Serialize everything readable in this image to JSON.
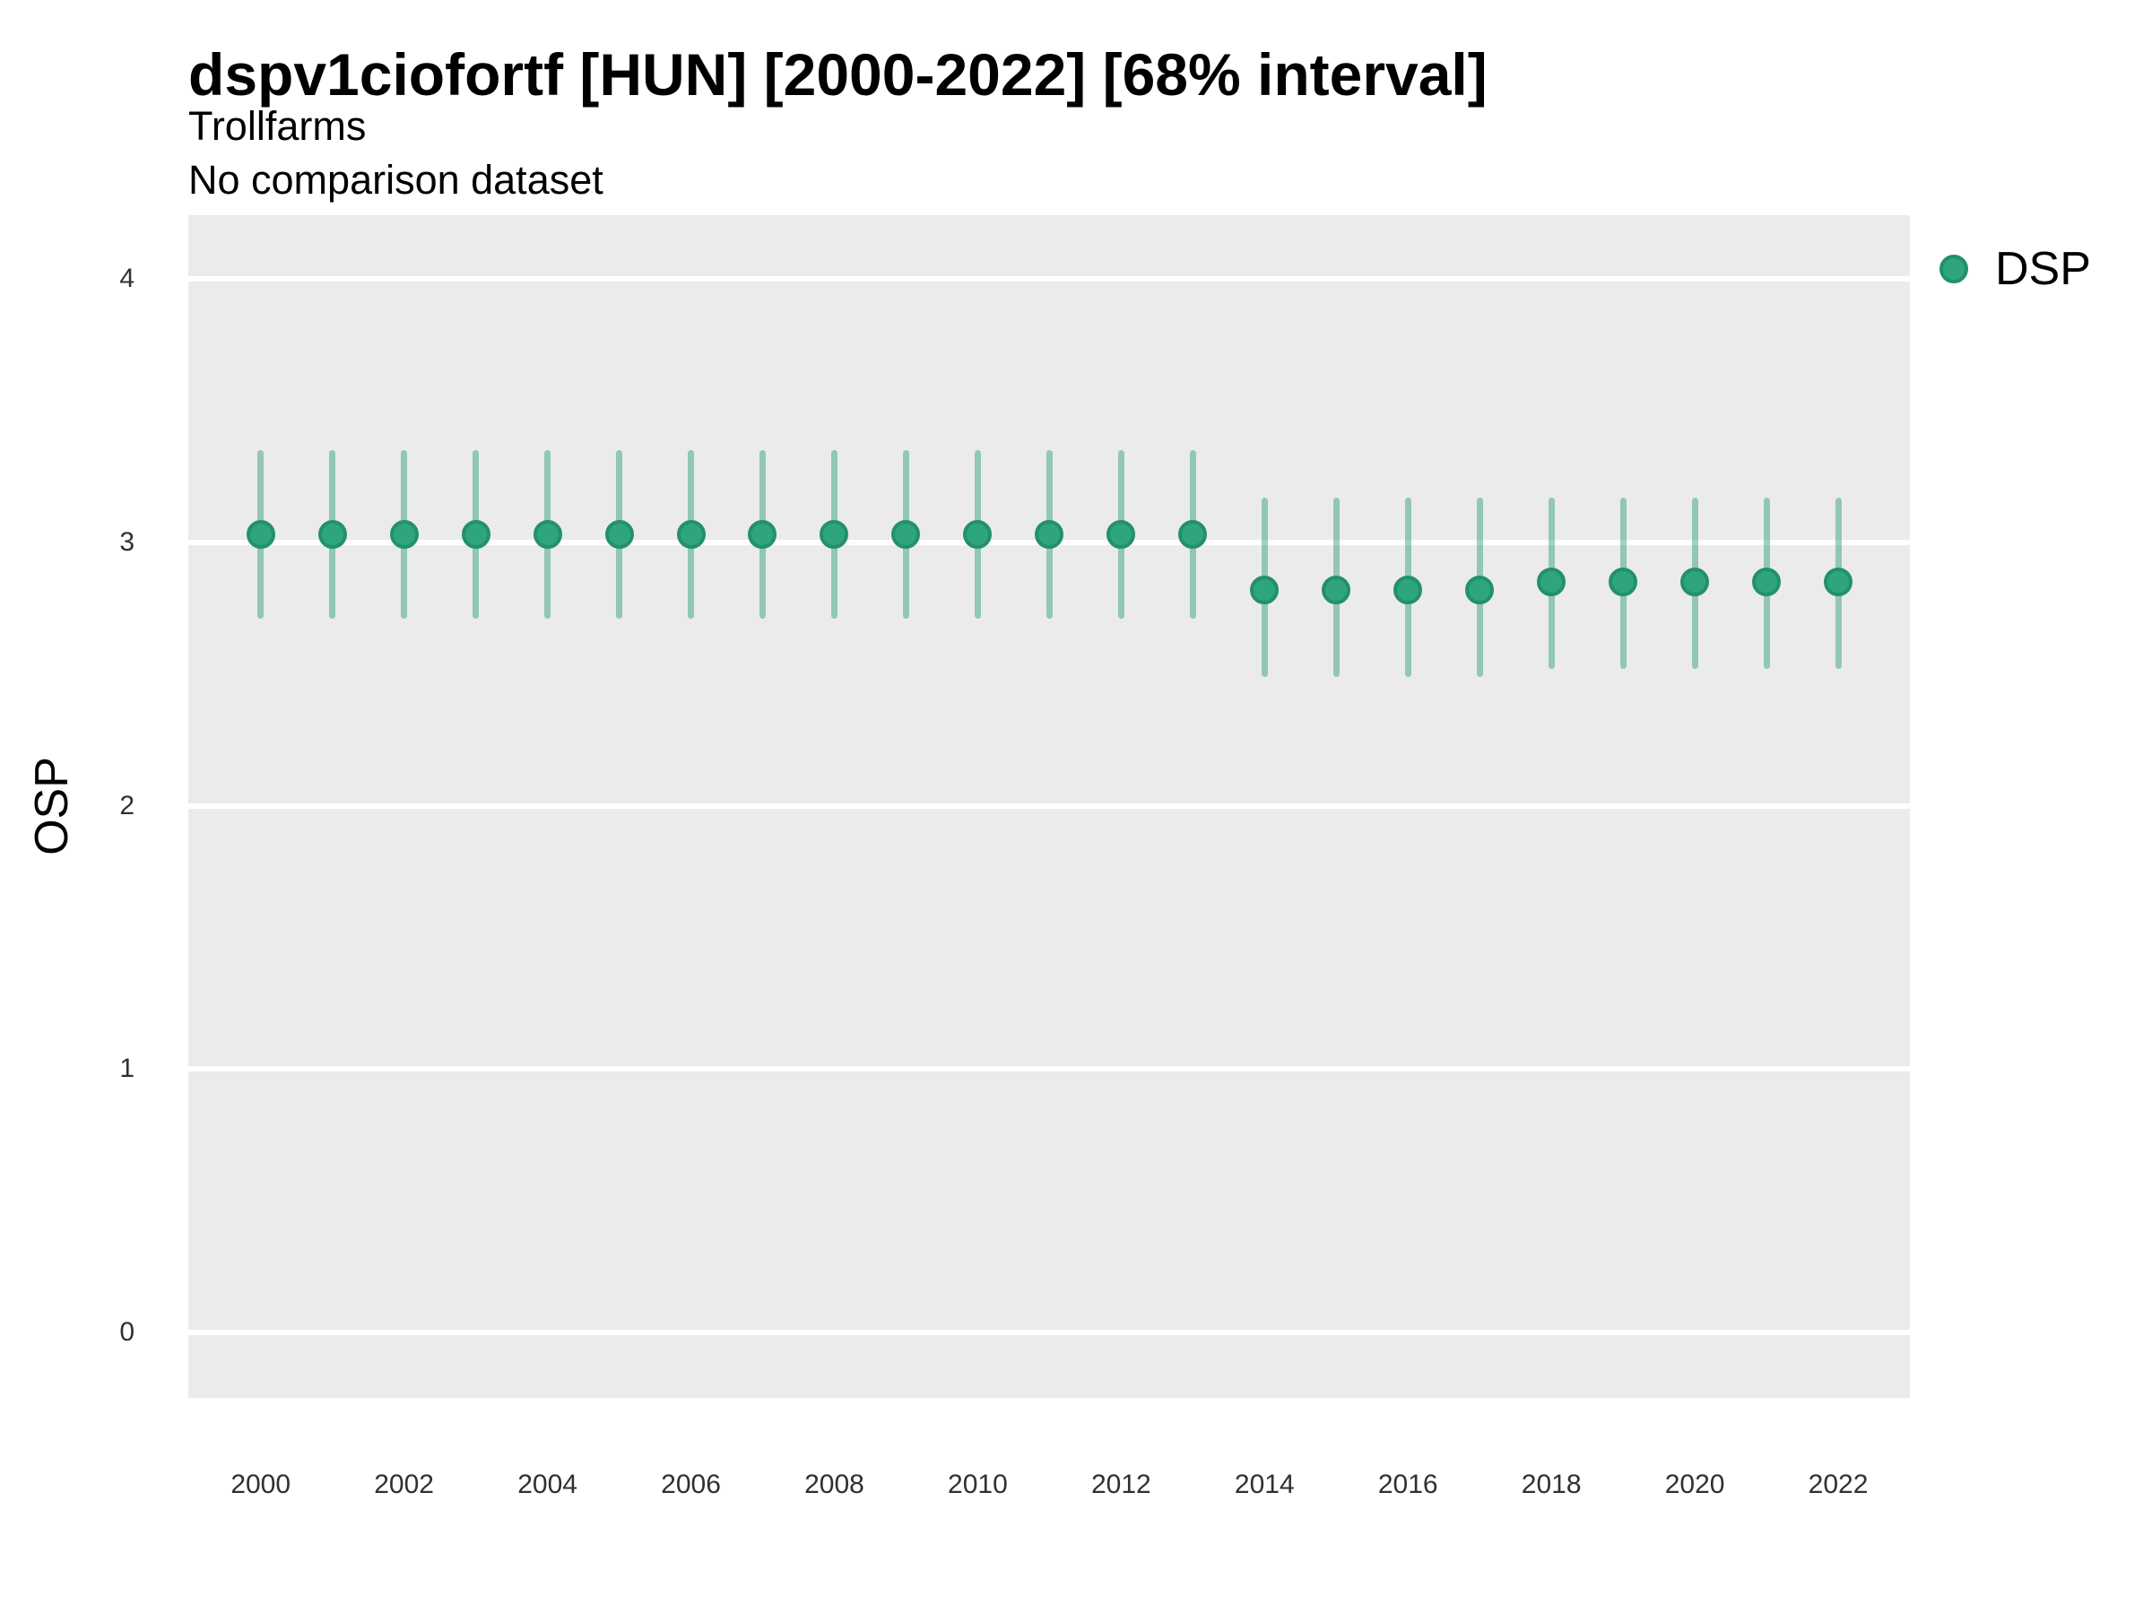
{
  "title": "dspv1ciofortf [HUN] [2000-2022] [68% interval]",
  "subtitle": "Trollfarms",
  "comparison_note": "No comparison dataset",
  "y_axis": {
    "label": "OSP",
    "ticks": [
      0,
      1,
      2,
      3,
      4
    ]
  },
  "x_axis": {
    "ticks": [
      2000,
      2002,
      2004,
      2006,
      2008,
      2010,
      2012,
      2014,
      2016,
      2018,
      2020,
      2022
    ]
  },
  "legend": {
    "items": [
      {
        "label": "DSP",
        "color": "#2ea57d"
      }
    ]
  },
  "colors": {
    "point_fill": "#2ea57d",
    "point_stroke": "#239168",
    "interval_bar": "rgba(44,160,120,0.47)",
    "panel_background": "#ebebeb",
    "gridline": "#ffffff",
    "tick_text": "#303030",
    "title_text": "#000000"
  },
  "chart_data": {
    "type": "scatter",
    "title": "dspv1ciofortf [HUN] [2000-2022] [68% interval]",
    "subtitle": "Trollfarms",
    "note": "No comparison dataset",
    "interval": "68%",
    "xlabel": "",
    "ylabel": "OSP",
    "x": [
      2000,
      2001,
      2002,
      2003,
      2004,
      2005,
      2006,
      2007,
      2008,
      2009,
      2010,
      2011,
      2012,
      2013,
      2014,
      2015,
      2016,
      2017,
      2018,
      2019,
      2020,
      2021,
      2022
    ],
    "series": [
      {
        "name": "DSP",
        "values": [
          3.03,
          3.03,
          3.03,
          3.03,
          3.03,
          3.03,
          3.03,
          3.03,
          3.03,
          3.03,
          3.03,
          3.03,
          3.03,
          3.03,
          2.82,
          2.82,
          2.82,
          2.82,
          2.85,
          2.85,
          2.85,
          2.85,
          2.85
        ],
        "interval_low": [
          2.71,
          2.71,
          2.71,
          2.71,
          2.71,
          2.71,
          2.71,
          2.71,
          2.71,
          2.71,
          2.71,
          2.71,
          2.71,
          2.71,
          2.49,
          2.49,
          2.49,
          2.49,
          2.52,
          2.52,
          2.52,
          2.52,
          2.52
        ],
        "interval_high": [
          3.35,
          3.35,
          3.35,
          3.35,
          3.35,
          3.35,
          3.35,
          3.35,
          3.35,
          3.35,
          3.35,
          3.35,
          3.35,
          3.35,
          3.17,
          3.17,
          3.17,
          3.17,
          3.17,
          3.17,
          3.17,
          3.17,
          3.17
        ]
      }
    ],
    "xlim": [
      1999,
      2023
    ],
    "ylim": [
      -0.25,
      4.25
    ],
    "grid": "horizontal-major-only",
    "legend_position": "right-top"
  }
}
